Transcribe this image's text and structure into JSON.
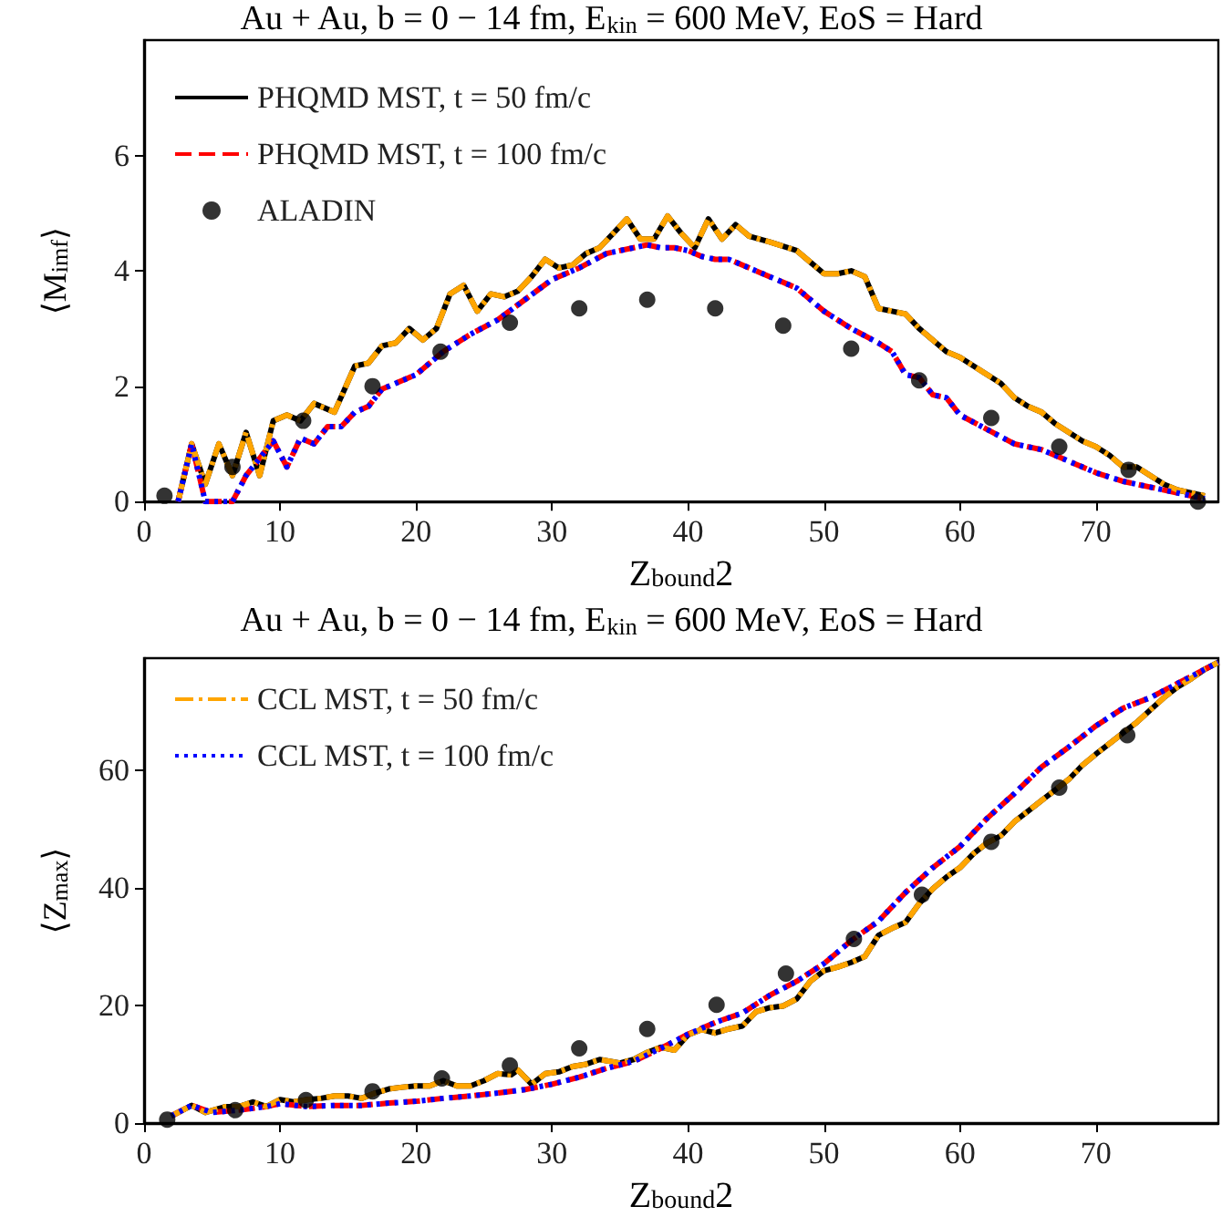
{
  "chart_data": [
    {
      "type": "line",
      "title": "Au + Au, b = 0 − 14 fm, E$_{kin}$ = 600 MeV, EoS = Hard",
      "xlabel": "Z$_{bound}$2",
      "ylabel": "⟨M$_{imf}$⟩",
      "xlim": [
        0,
        79
      ],
      "ylim": [
        0,
        8
      ],
      "xticks": [
        0,
        10,
        20,
        30,
        40,
        50,
        60,
        70
      ],
      "yticks": [
        0,
        2,
        4,
        6
      ],
      "grid": false,
      "legend": "top left",
      "series": [
        {
          "name": "PHQMD MST, t = 50 fm/c",
          "color": "#000000",
          "line_style": "solid",
          "marker": "none",
          "x": [
            2.5,
            3.5,
            4.5,
            5.5,
            6.5,
            7.5,
            8.5,
            9.5,
            10.5,
            11.5,
            12.5,
            14,
            15.5,
            16.5,
            17.5,
            18.5,
            19.5,
            20.5,
            21.5,
            22.5,
            23.5,
            24.5,
            25.5,
            26.5,
            27.5,
            28.5,
            29.5,
            30.5,
            31.5,
            32.5,
            33.5,
            34.5,
            35.5,
            36.5,
            37.5,
            38.5,
            39.5,
            40.5,
            41.5,
            42.5,
            43.5,
            44.5,
            46,
            48,
            49,
            50,
            51,
            52,
            53,
            54,
            55,
            56,
            57,
            58,
            59,
            60,
            61,
            62,
            63,
            64,
            65,
            66,
            67,
            68,
            69,
            70,
            71,
            72,
            73,
            74,
            75,
            76,
            77,
            78
          ],
          "values": [
            0,
            1.0,
            0.3,
            1.0,
            0.45,
            1.2,
            0.45,
            1.4,
            1.5,
            1.4,
            1.7,
            1.55,
            2.35,
            2.4,
            2.7,
            2.75,
            3.0,
            2.8,
            3.0,
            3.6,
            3.75,
            3.3,
            3.6,
            3.55,
            3.65,
            3.9,
            4.2,
            4.05,
            4.1,
            4.3,
            4.4,
            4.65,
            4.9,
            4.55,
            4.55,
            4.95,
            4.65,
            4.4,
            4.9,
            4.55,
            4.8,
            4.6,
            4.5,
            4.35,
            4.15,
            3.95,
            3.95,
            4.0,
            3.9,
            3.35,
            3.3,
            3.25,
            3.0,
            2.8,
            2.6,
            2.5,
            2.35,
            2.2,
            2.05,
            1.8,
            1.65,
            1.55,
            1.35,
            1.2,
            1.05,
            0.95,
            0.8,
            0.6,
            0.6,
            0.45,
            0.3,
            0.2,
            0.15,
            0.1
          ]
        },
        {
          "name": "PHQMD MST, t = 100 fm/c",
          "color": "#ff0000",
          "line_style": "dashed",
          "marker": "none",
          "x": [
            2.5,
            3.5,
            4.5,
            5.5,
            6.5,
            7.5,
            8.5,
            9.5,
            10.5,
            11.5,
            12.5,
            13.5,
            14.5,
            15.5,
            16.5,
            17.5,
            18.5,
            20,
            22,
            24,
            26,
            28,
            30,
            32,
            34,
            36,
            37,
            38,
            39,
            40,
            41,
            42,
            43,
            44,
            46,
            48,
            49,
            50,
            52,
            54,
            55,
            56,
            57,
            58,
            59,
            60,
            62,
            64,
            66,
            68,
            70,
            72,
            74,
            76,
            78
          ],
          "values": [
            0,
            1.0,
            0,
            0,
            0,
            0.45,
            0.75,
            1.05,
            0.6,
            1.1,
            1.0,
            1.3,
            1.3,
            1.55,
            1.65,
            1.95,
            2.05,
            2.2,
            2.6,
            2.9,
            3.15,
            3.5,
            3.85,
            4.05,
            4.3,
            4.4,
            4.45,
            4.4,
            4.4,
            4.35,
            4.25,
            4.2,
            4.2,
            4.1,
            3.9,
            3.7,
            3.5,
            3.3,
            3.0,
            2.75,
            2.6,
            2.2,
            2.15,
            1.85,
            1.8,
            1.5,
            1.25,
            1.0,
            0.9,
            0.7,
            0.5,
            0.35,
            0.25,
            0.15,
            0.05
          ]
        },
        {
          "name": "ALADIN",
          "type": "scatter",
          "color": "#000000",
          "marker": "circle",
          "x": [
            1.5,
            6.5,
            11.7,
            16.8,
            21.8,
            26.9,
            32,
            37,
            42,
            47,
            52,
            57,
            62.3,
            67.3,
            72.4,
            77.5
          ],
          "values": [
            0.1,
            0.6,
            1.4,
            2.0,
            2.6,
            3.1,
            3.35,
            3.5,
            3.35,
            3.05,
            2.65,
            2.1,
            1.45,
            0.95,
            0.55,
            0.0
          ]
        },
        {
          "color": "#ffa500",
          "line_style": "dashdot",
          "marker": "none",
          "x": [
            2.5,
            3.5,
            4.5,
            5.5,
            6.5,
            7.5,
            8.5,
            9.5,
            10.5,
            11.5,
            12.5,
            14,
            15.5,
            16.5,
            17.5,
            18.5,
            19.5,
            20.5,
            21.5,
            22.5,
            23.5,
            24.5,
            25.5,
            26.5,
            27.5,
            28.5,
            29.5,
            30.5,
            31.5,
            32.5,
            33.5,
            34.5,
            35.5,
            36.5,
            37.5,
            38.5,
            39.5,
            40.5,
            41.5,
            42.5,
            43.5,
            44.5,
            46,
            48,
            49,
            50,
            51,
            52,
            53,
            54,
            55,
            56,
            57,
            58,
            59,
            60,
            61,
            62,
            63,
            64,
            65,
            66,
            67,
            68,
            69,
            70,
            71,
            72,
            73,
            74,
            75,
            76,
            77,
            78
          ],
          "values": [
            0,
            1.0,
            0.3,
            1.0,
            0.45,
            1.2,
            0.45,
            1.4,
            1.5,
            1.4,
            1.7,
            1.55,
            2.35,
            2.4,
            2.7,
            2.75,
            3.0,
            2.8,
            3.0,
            3.6,
            3.75,
            3.3,
            3.6,
            3.55,
            3.65,
            3.9,
            4.2,
            4.05,
            4.1,
            4.3,
            4.4,
            4.65,
            4.9,
            4.55,
            4.55,
            4.95,
            4.65,
            4.4,
            4.9,
            4.55,
            4.8,
            4.6,
            4.5,
            4.35,
            4.15,
            3.95,
            3.95,
            4.0,
            3.9,
            3.35,
            3.3,
            3.25,
            3.0,
            2.8,
            2.6,
            2.5,
            2.35,
            2.2,
            2.05,
            1.8,
            1.65,
            1.55,
            1.35,
            1.2,
            1.05,
            0.95,
            0.8,
            0.6,
            0.6,
            0.45,
            0.3,
            0.2,
            0.15,
            0.1
          ]
        },
        {
          "color": "#0000ff",
          "line_style": "dotted",
          "marker": "none",
          "x": [
            2.5,
            3.5,
            4.5,
            5.5,
            6.5,
            7.5,
            8.5,
            9.5,
            10.5,
            11.5,
            12.5,
            13.5,
            14.5,
            15.5,
            16.5,
            17.5,
            18.5,
            20,
            22,
            24,
            26,
            28,
            30,
            32,
            34,
            36,
            37,
            38,
            39,
            40,
            41,
            42,
            43,
            44,
            46,
            48,
            49,
            50,
            52,
            54,
            55,
            56,
            57,
            58,
            59,
            60,
            62,
            64,
            66,
            68,
            70,
            72,
            74,
            76,
            78
          ],
          "values": [
            0,
            1.0,
            0,
            0,
            0,
            0.45,
            0.75,
            1.05,
            0.6,
            1.1,
            1.0,
            1.3,
            1.3,
            1.55,
            1.65,
            1.95,
            2.05,
            2.2,
            2.6,
            2.9,
            3.15,
            3.5,
            3.85,
            4.05,
            4.3,
            4.4,
            4.45,
            4.4,
            4.4,
            4.35,
            4.25,
            4.2,
            4.2,
            4.1,
            3.9,
            3.7,
            3.5,
            3.3,
            3.0,
            2.75,
            2.6,
            2.2,
            2.15,
            1.85,
            1.8,
            1.5,
            1.25,
            1.0,
            0.9,
            0.7,
            0.5,
            0.35,
            0.25,
            0.15,
            0.05
          ]
        }
      ]
    },
    {
      "type": "line",
      "title": "Au + Au, b = 0 − 14 fm, E$_{kin}$ = 600 MeV, EoS = Hard",
      "xlabel": "Z$_{bound}$2",
      "ylabel": "⟨Z$_{max}$⟩",
      "xlim": [
        0,
        79
      ],
      "ylim": [
        0,
        79
      ],
      "xticks": [
        0,
        10,
        20,
        30,
        40,
        50,
        60,
        70
      ],
      "yticks": [
        0,
        20,
        40,
        60
      ],
      "grid": false,
      "legend": "top left",
      "series": [
        {
          "color": "#000000",
          "line_style": "solid",
          "marker": "none",
          "x": [
            2,
            3.5,
            4.5,
            6,
            7,
            8,
            9,
            10,
            11,
            12,
            13,
            14,
            15,
            16,
            17,
            18,
            19,
            20,
            21,
            22,
            23,
            24,
            25,
            26,
            27,
            27.5,
            28.5,
            29.5,
            30.5,
            31.5,
            32.5,
            33.5,
            35,
            36,
            37,
            38,
            39,
            40,
            41,
            42,
            43,
            44,
            45,
            46,
            47,
            48,
            49,
            50,
            51,
            52,
            53,
            54,
            55,
            56,
            57,
            58,
            59,
            60,
            61,
            62,
            63,
            64,
            65,
            66,
            67,
            68,
            69,
            70,
            71,
            72,
            73,
            74,
            75,
            76,
            77,
            78,
            79
          ],
          "values": [
            1.2,
            3.0,
            1.8,
            2.8,
            2.8,
            3.6,
            2.8,
            4.0,
            3.6,
            4.0,
            4.2,
            4.6,
            4.6,
            4.2,
            5.1,
            5.8,
            6.1,
            6.3,
            6.3,
            7.2,
            6.3,
            6.3,
            7.2,
            8.4,
            8.2,
            9.0,
            6.6,
            8.4,
            8.7,
            9.6,
            10.0,
            10.8,
            10.2,
            10.8,
            12.0,
            12.9,
            12.4,
            15.0,
            15.9,
            15.3,
            16.0,
            16.5,
            18.9,
            19.6,
            19.9,
            21.1,
            24.1,
            25.9,
            26.5,
            27.3,
            28.3,
            31.9,
            33.1,
            34.1,
            37.3,
            39.8,
            41.8,
            43.4,
            45.8,
            47.6,
            48.8,
            51.2,
            53.0,
            54.8,
            56.6,
            58.4,
            60.8,
            62.7,
            64.5,
            66.3,
            68.1,
            70.2,
            72.3,
            74.1,
            75.5,
            77.1,
            78.3
          ]
        },
        {
          "color": "#ff0000",
          "line_style": "dashed",
          "marker": "none",
          "x": [
            2,
            3.5,
            5,
            7,
            9,
            10,
            12,
            14,
            16,
            18,
            20,
            22,
            24,
            26,
            28,
            30,
            32,
            34,
            36,
            38,
            40,
            42,
            44,
            46,
            48,
            50,
            52,
            54,
            56,
            58,
            60,
            62,
            64,
            66,
            68,
            70,
            72,
            74,
            76,
            78,
            79
          ],
          "values": [
            1.2,
            3.0,
            1.8,
            2.2,
            2.8,
            3.3,
            2.8,
            3.0,
            3.0,
            3.4,
            3.7,
            4.2,
            4.6,
            5.1,
            5.7,
            6.6,
            7.8,
            9.3,
            10.5,
            12.7,
            15.1,
            17.1,
            18.7,
            21.7,
            24.1,
            27.1,
            31.0,
            34.3,
            39.2,
            43.4,
            47.0,
            51.8,
            56.0,
            60.5,
            63.9,
            67.5,
            70.5,
            72.3,
            74.7,
            77.1,
            78.3
          ]
        },
        {
          "type": "scatter",
          "color": "#000000",
          "marker": "circle",
          "x": [
            1.7,
            6.7,
            11.9,
            16.8,
            21.9,
            26.9,
            32,
            37,
            42.1,
            47.2,
            52.2,
            57.2,
            62.3,
            67.3,
            72.3
          ],
          "values": [
            0.6,
            2.2,
            3.9,
            5.4,
            7.6,
            9.8,
            12.7,
            16.0,
            20.1,
            25.4,
            31.3,
            38.8,
            47.8,
            57.0,
            65.9
          ]
        },
        {
          "name": "CCL MST, t = 50 fm/c",
          "color": "#ffa500",
          "line_style": "dashdot",
          "marker": "none",
          "x": [
            2,
            3.5,
            4.5,
            6,
            7,
            8,
            9,
            10,
            11,
            12,
            13,
            14,
            15,
            16,
            17,
            18,
            19,
            20,
            21,
            22,
            23,
            24,
            25,
            26,
            27,
            27.5,
            28.5,
            29.5,
            30.5,
            31.5,
            32.5,
            33.5,
            35,
            36,
            37,
            38,
            39,
            40,
            41,
            42,
            43,
            44,
            45,
            46,
            47,
            48,
            49,
            50,
            51,
            52,
            53,
            54,
            55,
            56,
            57,
            58,
            59,
            60,
            61,
            62,
            63,
            64,
            65,
            66,
            67,
            68,
            69,
            70,
            71,
            72,
            73,
            74,
            75,
            76,
            77,
            78,
            79
          ],
          "values": [
            1.2,
            3.0,
            1.8,
            2.8,
            2.8,
            3.6,
            2.8,
            4.0,
            3.6,
            4.0,
            4.2,
            4.6,
            4.6,
            4.2,
            5.1,
            5.8,
            6.1,
            6.3,
            6.3,
            7.2,
            6.3,
            6.3,
            7.2,
            8.4,
            8.2,
            9.0,
            6.6,
            8.4,
            8.7,
            9.6,
            10.0,
            10.8,
            10.2,
            10.8,
            12.0,
            12.9,
            12.4,
            15.0,
            15.9,
            15.3,
            16.0,
            16.5,
            18.9,
            19.6,
            19.9,
            21.1,
            24.1,
            25.9,
            26.5,
            27.3,
            28.3,
            31.9,
            33.1,
            34.1,
            37.3,
            39.8,
            41.8,
            43.4,
            45.8,
            47.6,
            48.8,
            51.2,
            53.0,
            54.8,
            56.6,
            58.4,
            60.8,
            62.7,
            64.5,
            66.3,
            68.1,
            70.2,
            72.3,
            74.1,
            75.5,
            77.1,
            78.3
          ]
        },
        {
          "name": "CCL MST, t = 100 fm/c",
          "color": "#0000ff",
          "line_style": "dotted",
          "marker": "none",
          "x": [
            2,
            3.5,
            5,
            7,
            9,
            10,
            12,
            14,
            16,
            18,
            20,
            22,
            24,
            26,
            28,
            30,
            32,
            34,
            36,
            38,
            40,
            42,
            44,
            46,
            48,
            50,
            52,
            54,
            56,
            58,
            60,
            62,
            64,
            66,
            68,
            70,
            72,
            74,
            76,
            78,
            79
          ],
          "values": [
            1.2,
            3.0,
            1.8,
            2.2,
            2.8,
            3.3,
            2.8,
            3.0,
            3.0,
            3.4,
            3.7,
            4.2,
            4.6,
            5.1,
            5.7,
            6.6,
            7.8,
            9.3,
            10.5,
            12.7,
            15.1,
            17.1,
            18.7,
            21.7,
            24.1,
            27.1,
            31.0,
            34.3,
            39.2,
            43.4,
            47.0,
            51.8,
            56.0,
            60.5,
            63.9,
            67.5,
            70.5,
            72.3,
            74.7,
            77.1,
            78.3
          ]
        }
      ]
    }
  ]
}
